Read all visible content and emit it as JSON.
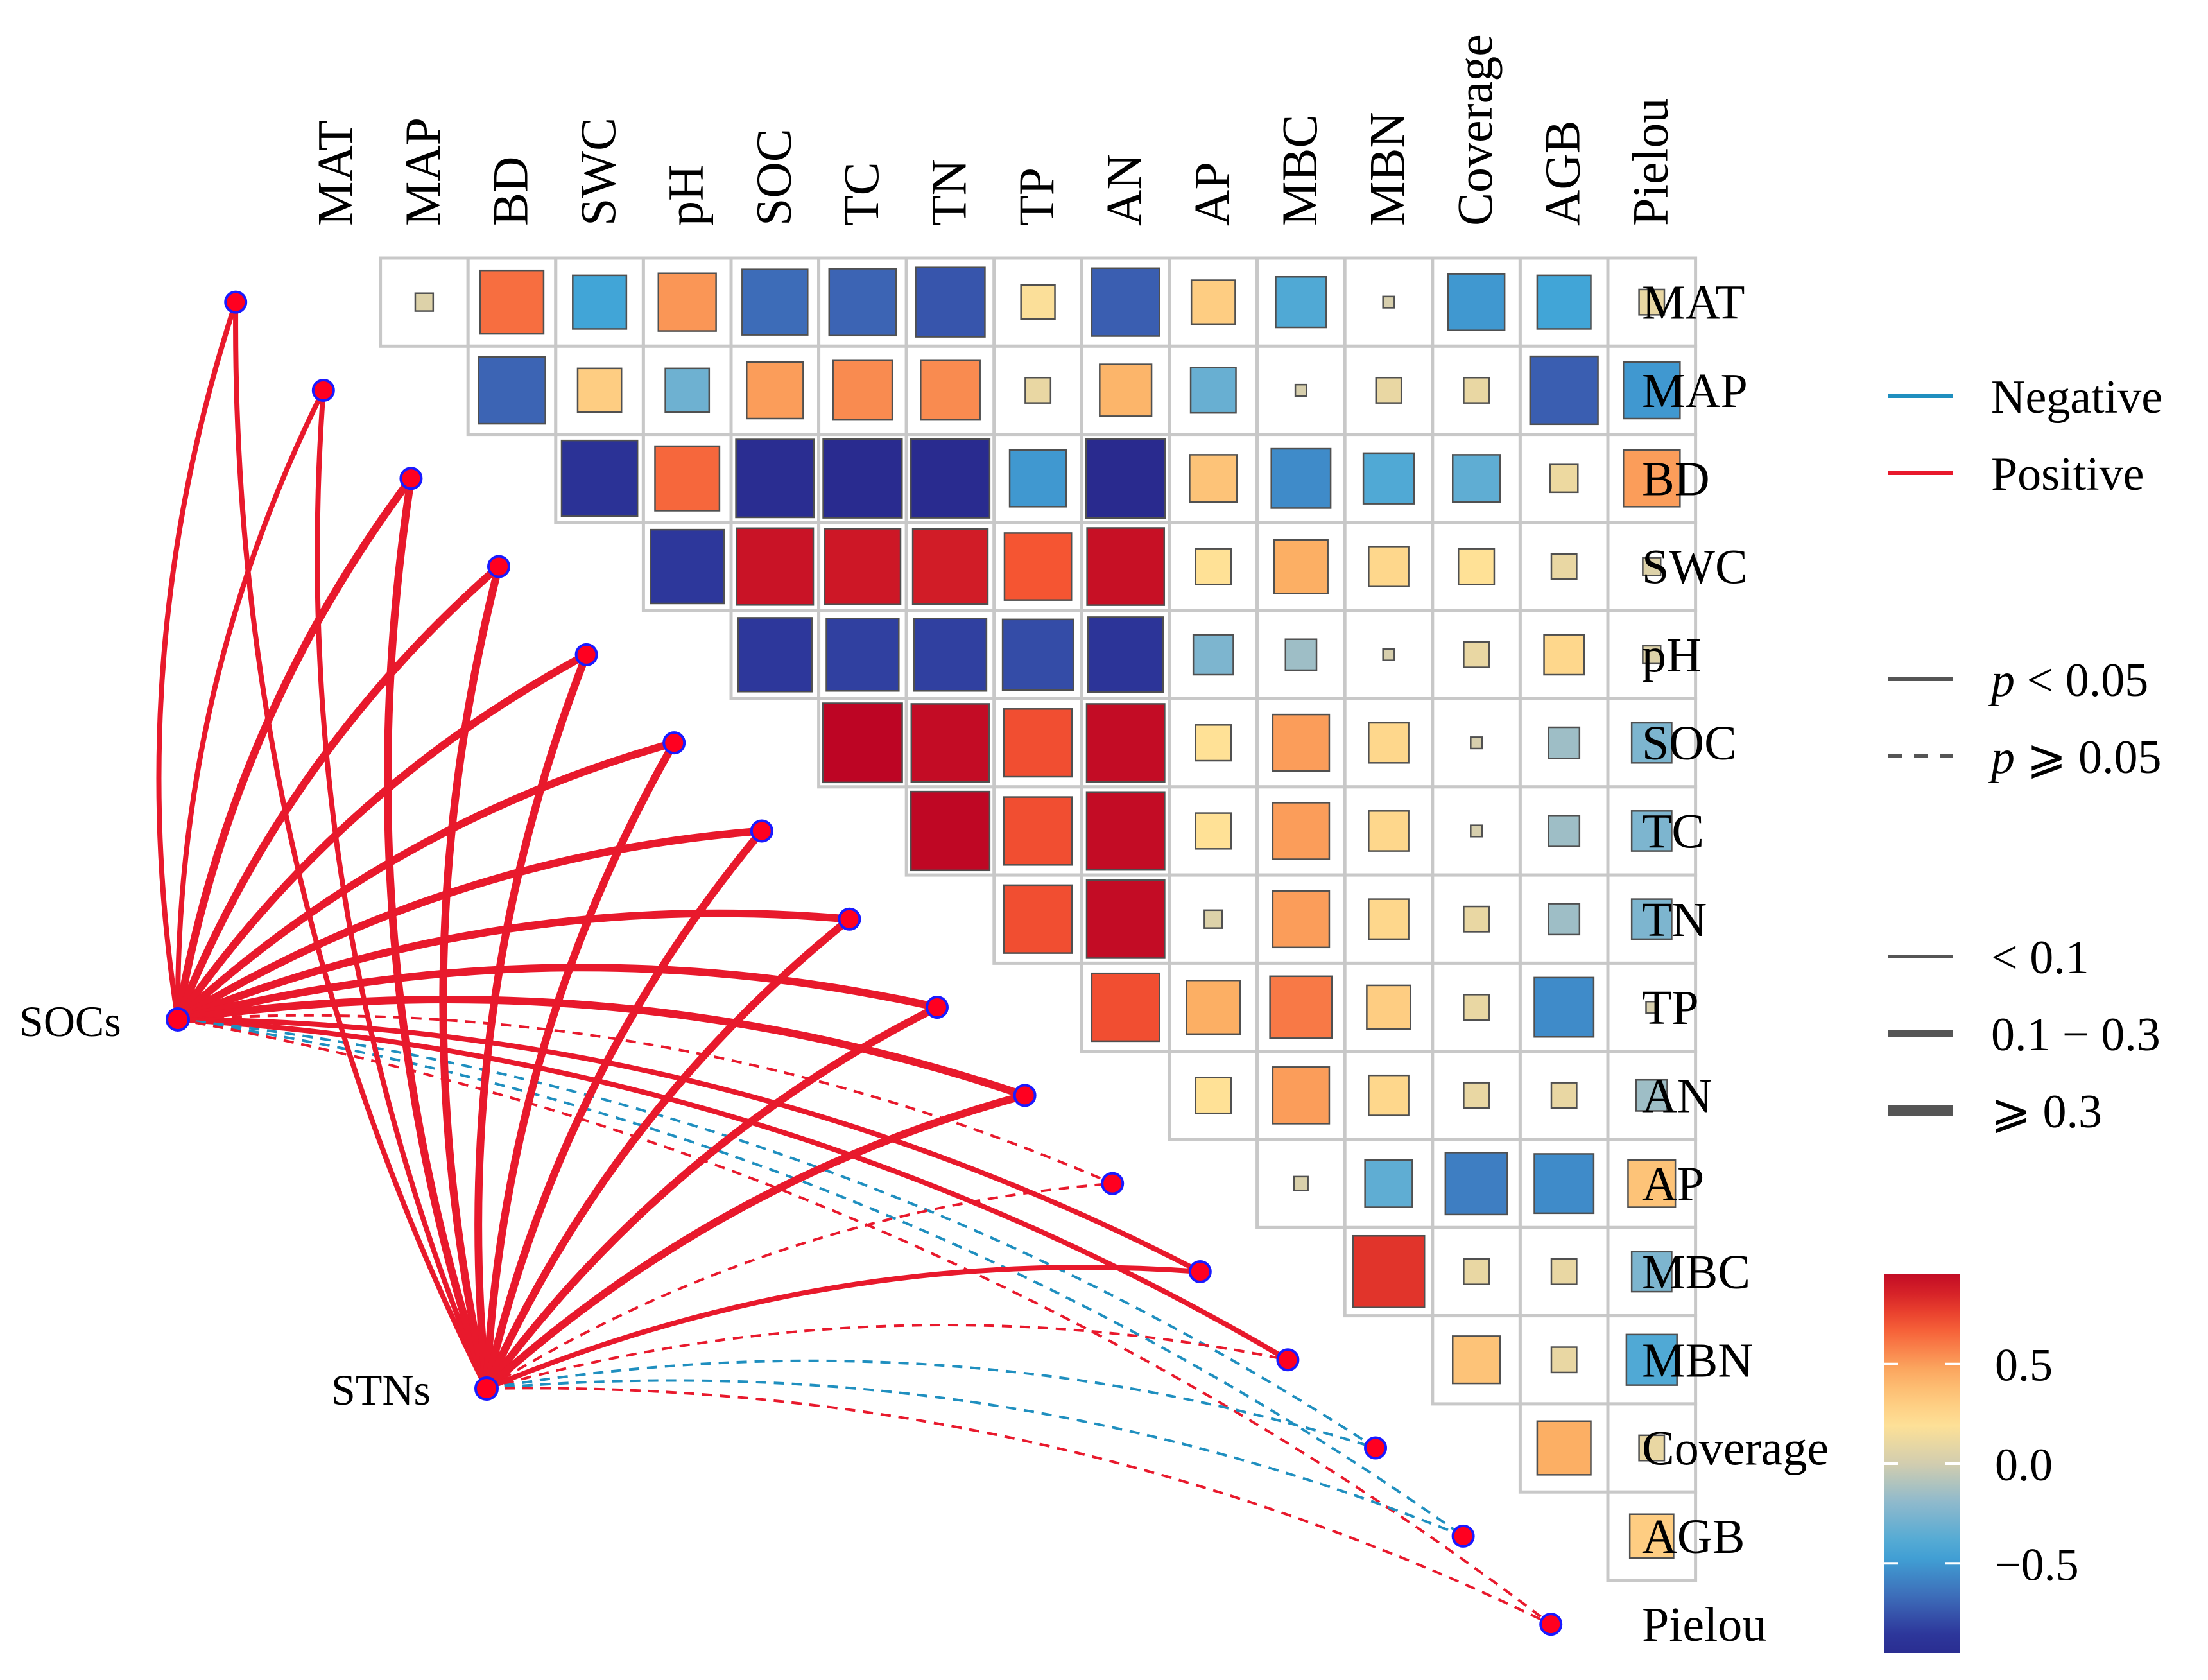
{
  "chart_data": {
    "type": "heatmap",
    "variables": [
      "MAT",
      "MAP",
      "BD",
      "SWC",
      "pH",
      "SOC",
      "TC",
      "TN",
      "TP",
      "AN",
      "AP",
      "MBC",
      "MBN",
      "Coverage",
      "AGB",
      "Pielou"
    ],
    "correlation_matrix": [
      [
        null,
        0.05,
        0.63,
        -0.45,
        0.52,
        -0.67,
        -0.7,
        -0.75,
        0.18,
        -0.72,
        0.3,
        -0.4,
        0.02,
        -0.5,
        -0.45,
        0.1
      ],
      [
        null,
        null,
        -0.7,
        0.3,
        -0.3,
        0.5,
        0.55,
        0.55,
        0.1,
        0.42,
        -0.32,
        0.02,
        0.1,
        0.1,
        -0.72,
        -0.5
      ],
      [
        null,
        null,
        null,
        -0.9,
        0.65,
        -0.95,
        -0.97,
        -0.97,
        -0.5,
        -0.98,
        0.35,
        -0.55,
        -0.4,
        -0.35,
        0.12,
        0.5
      ],
      [
        null,
        null,
        null,
        null,
        -0.85,
        0.92,
        0.9,
        0.88,
        0.7,
        0.93,
        0.2,
        0.45,
        0.25,
        0.2,
        0.1,
        0.05
      ],
      [
        null,
        null,
        null,
        null,
        null,
        -0.85,
        -0.82,
        -0.82,
        -0.78,
        -0.88,
        -0.25,
        -0.15,
        0.02,
        0.1,
        0.25,
        0.05
      ],
      [
        null,
        null,
        null,
        null,
        null,
        null,
        0.98,
        0.95,
        0.72,
        0.95,
        0.2,
        0.5,
        0.25,
        0.02,
        -0.15,
        -0.25
      ],
      [
        null,
        null,
        null,
        null,
        null,
        null,
        null,
        0.97,
        0.72,
        0.95,
        0.2,
        0.5,
        0.25,
        0.02,
        -0.15,
        -0.25
      ],
      [
        null,
        null,
        null,
        null,
        null,
        null,
        null,
        null,
        0.72,
        0.95,
        0.05,
        0.5,
        0.25,
        0.1,
        -0.15,
        -0.25
      ],
      [
        null,
        null,
        null,
        null,
        null,
        null,
        null,
        null,
        null,
        0.72,
        0.45,
        0.6,
        0.3,
        0.1,
        -0.55,
        0.02
      ],
      [
        null,
        null,
        null,
        null,
        null,
        null,
        null,
        null,
        null,
        null,
        0.2,
        0.5,
        0.25,
        0.1,
        0.1,
        -0.15
      ],
      [
        null,
        null,
        null,
        null,
        null,
        null,
        null,
        null,
        null,
        null,
        null,
        0.03,
        -0.35,
        -0.6,
        -0.55,
        0.35
      ],
      [
        null,
        null,
        null,
        null,
        null,
        null,
        null,
        null,
        null,
        null,
        null,
        null,
        0.8,
        0.1,
        0.1,
        -0.25
      ],
      [
        null,
        null,
        null,
        null,
        null,
        null,
        null,
        null,
        null,
        null,
        null,
        null,
        null,
        0.35,
        0.1,
        -0.4
      ],
      [
        null,
        null,
        null,
        null,
        null,
        null,
        null,
        null,
        null,
        null,
        null,
        null,
        null,
        null,
        0.45,
        0.1
      ],
      [
        null,
        null,
        null,
        null,
        null,
        null,
        null,
        null,
        null,
        null,
        null,
        null,
        null,
        null,
        null,
        0.3
      ],
      [
        null,
        null,
        null,
        null,
        null,
        null,
        null,
        null,
        null,
        null,
        null,
        null,
        null,
        null,
        null,
        null
      ]
    ],
    "network_nodes": [
      "SOCs",
      "STNs"
    ],
    "links": [
      {
        "from": "SOCs",
        "to": "MAT",
        "sign": "Positive",
        "significant": true,
        "width_class": "0.1 - 0.3"
      },
      {
        "from": "SOCs",
        "to": "MAP",
        "sign": "Positive",
        "significant": true,
        "width_class": "0.1 - 0.3"
      },
      {
        "from": "SOCs",
        "to": "BD",
        "sign": "Positive",
        "significant": true,
        "width_class": ">= 0.3"
      },
      {
        "from": "SOCs",
        "to": "SWC",
        "sign": "Positive",
        "significant": true,
        "width_class": ">= 0.3"
      },
      {
        "from": "SOCs",
        "to": "pH",
        "sign": "Positive",
        "significant": true,
        "width_class": ">= 0.3"
      },
      {
        "from": "SOCs",
        "to": "SOC",
        "sign": "Positive",
        "significant": true,
        "width_class": ">= 0.3"
      },
      {
        "from": "SOCs",
        "to": "TC",
        "sign": "Positive",
        "significant": true,
        "width_class": ">= 0.3"
      },
      {
        "from": "SOCs",
        "to": "TN",
        "sign": "Positive",
        "significant": true,
        "width_class": ">= 0.3"
      },
      {
        "from": "SOCs",
        "to": "TP",
        "sign": "Positive",
        "significant": true,
        "width_class": ">= 0.3"
      },
      {
        "from": "SOCs",
        "to": "AN",
        "sign": "Positive",
        "significant": true,
        "width_class": ">= 0.3"
      },
      {
        "from": "SOCs",
        "to": "AP",
        "sign": "Positive",
        "significant": false,
        "width_class": "< 0.1"
      },
      {
        "from": "SOCs",
        "to": "MBC",
        "sign": "Positive",
        "significant": true,
        "width_class": "0.1 - 0.3"
      },
      {
        "from": "SOCs",
        "to": "MBN",
        "sign": "Positive",
        "significant": true,
        "width_class": "0.1 - 0.3"
      },
      {
        "from": "SOCs",
        "to": "Coverage",
        "sign": "Negative",
        "significant": false,
        "width_class": "< 0.1"
      },
      {
        "from": "SOCs",
        "to": "AGB",
        "sign": "Negative",
        "significant": false,
        "width_class": "< 0.1"
      },
      {
        "from": "SOCs",
        "to": "Pielou",
        "sign": "Positive",
        "significant": false,
        "width_class": "< 0.1"
      },
      {
        "from": "STNs",
        "to": "MAT",
        "sign": "Positive",
        "significant": true,
        "width_class": "0.1 - 0.3"
      },
      {
        "from": "STNs",
        "to": "MAP",
        "sign": "Positive",
        "significant": true,
        "width_class": "0.1 - 0.3"
      },
      {
        "from": "STNs",
        "to": "BD",
        "sign": "Positive",
        "significant": true,
        "width_class": ">= 0.3"
      },
      {
        "from": "STNs",
        "to": "SWC",
        "sign": "Positive",
        "significant": true,
        "width_class": ">= 0.3"
      },
      {
        "from": "STNs",
        "to": "pH",
        "sign": "Positive",
        "significant": true,
        "width_class": ">= 0.3"
      },
      {
        "from": "STNs",
        "to": "SOC",
        "sign": "Positive",
        "significant": true,
        "width_class": ">= 0.3"
      },
      {
        "from": "STNs",
        "to": "TC",
        "sign": "Positive",
        "significant": true,
        "width_class": ">= 0.3"
      },
      {
        "from": "STNs",
        "to": "TN",
        "sign": "Positive",
        "significant": true,
        "width_class": ">= 0.3"
      },
      {
        "from": "STNs",
        "to": "TP",
        "sign": "Positive",
        "significant": true,
        "width_class": ">= 0.3"
      },
      {
        "from": "STNs",
        "to": "AN",
        "sign": "Positive",
        "significant": true,
        "width_class": ">= 0.3"
      },
      {
        "from": "STNs",
        "to": "AP",
        "sign": "Positive",
        "significant": false,
        "width_class": "< 0.1"
      },
      {
        "from": "STNs",
        "to": "MBC",
        "sign": "Positive",
        "significant": true,
        "width_class": "0.1 - 0.3"
      },
      {
        "from": "STNs",
        "to": "MBN",
        "sign": "Positive",
        "significant": false,
        "width_class": "< 0.1"
      },
      {
        "from": "STNs",
        "to": "Coverage",
        "sign": "Negative",
        "significant": false,
        "width_class": "< 0.1"
      },
      {
        "from": "STNs",
        "to": "AGB",
        "sign": "Negative",
        "significant": false,
        "width_class": "< 0.1"
      },
      {
        "from": "STNs",
        "to": "Pielou",
        "sign": "Positive",
        "significant": false,
        "width_class": "< 0.1"
      }
    ],
    "legend": {
      "sign": {
        "title": "",
        "items": [
          "Negative",
          "Positive"
        ],
        "colors": [
          "#1f8fbf",
          "#e8192c"
        ]
      },
      "significance": {
        "items_prefix": "p",
        "items": [
          "< 0.05",
          "⩾ 0.05"
        ]
      },
      "width": {
        "items": [
          "< 0.1",
          "0.1 − 0.3",
          "⩾ 0.3"
        ]
      },
      "colorbar": {
        "ticks": [
          0.5,
          0.0,
          -0.5
        ],
        "tick_labels": [
          "0.5",
          "0.0",
          "−0.5"
        ],
        "range": [
          -0.95,
          0.95
        ]
      }
    },
    "legend_placement": "right",
    "colors": {
      "node_fill": "#ff0020",
      "node_stroke": "#1a1aff",
      "grid": "#c8c8c8",
      "square_stroke": "#505050"
    }
  }
}
